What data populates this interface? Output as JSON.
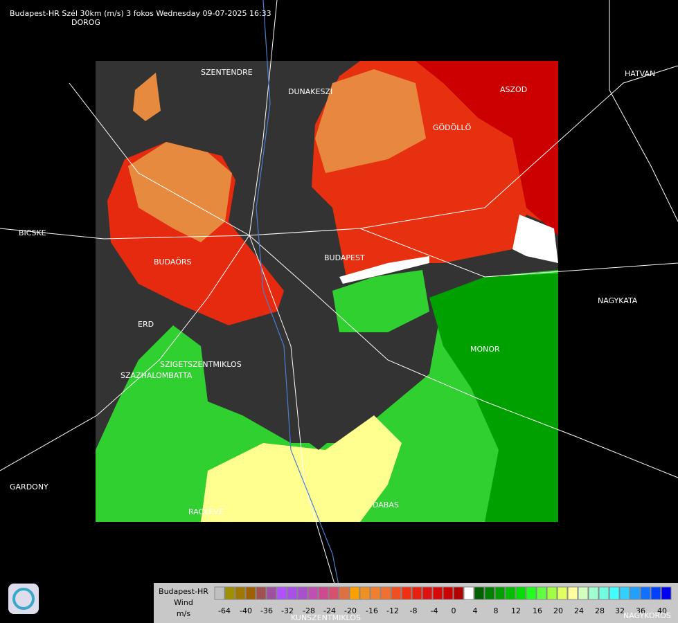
{
  "header": {
    "title": "Budapest-HR Szél 30km (m/s) 3 fokos Wednesday 09-07-2025 16:33"
  },
  "places": [
    {
      "label": "DOROG"
    },
    {
      "label": "SZENTENDRE"
    },
    {
      "label": "DUNAKESZI"
    },
    {
      "label": "ASZOD"
    },
    {
      "label": "HATVAN"
    },
    {
      "label": "GÖDÖLLŐ"
    },
    {
      "label": "BICSKE"
    },
    {
      "label": "BUDAÖRS"
    },
    {
      "label": "BUDAPEST"
    },
    {
      "label": "NAGYKATA"
    },
    {
      "label": "ERD"
    },
    {
      "label": "MONOR"
    },
    {
      "label": "SZIGETSZENTMIKLOS"
    },
    {
      "label": "SZAZHALOMBATTA"
    },
    {
      "label": "GARDONY"
    },
    {
      "label": "RACKEVE"
    },
    {
      "label": "DABAS"
    },
    {
      "label": "KUNSZENTMIKLOS"
    },
    {
      "label": "NAGYKOROS"
    }
  ],
  "legend": {
    "station": "Budapest-HR",
    "quantity": "Wind",
    "unit": "m/s",
    "labels": [
      "-64",
      "-40",
      "-36",
      "-32",
      "-28",
      "-24",
      "-20",
      "-16",
      "-12",
      "-8",
      "-4",
      "0",
      "4",
      "8",
      "12",
      "16",
      "20",
      "24",
      "28",
      "32",
      "36",
      "40"
    ]
  }
}
